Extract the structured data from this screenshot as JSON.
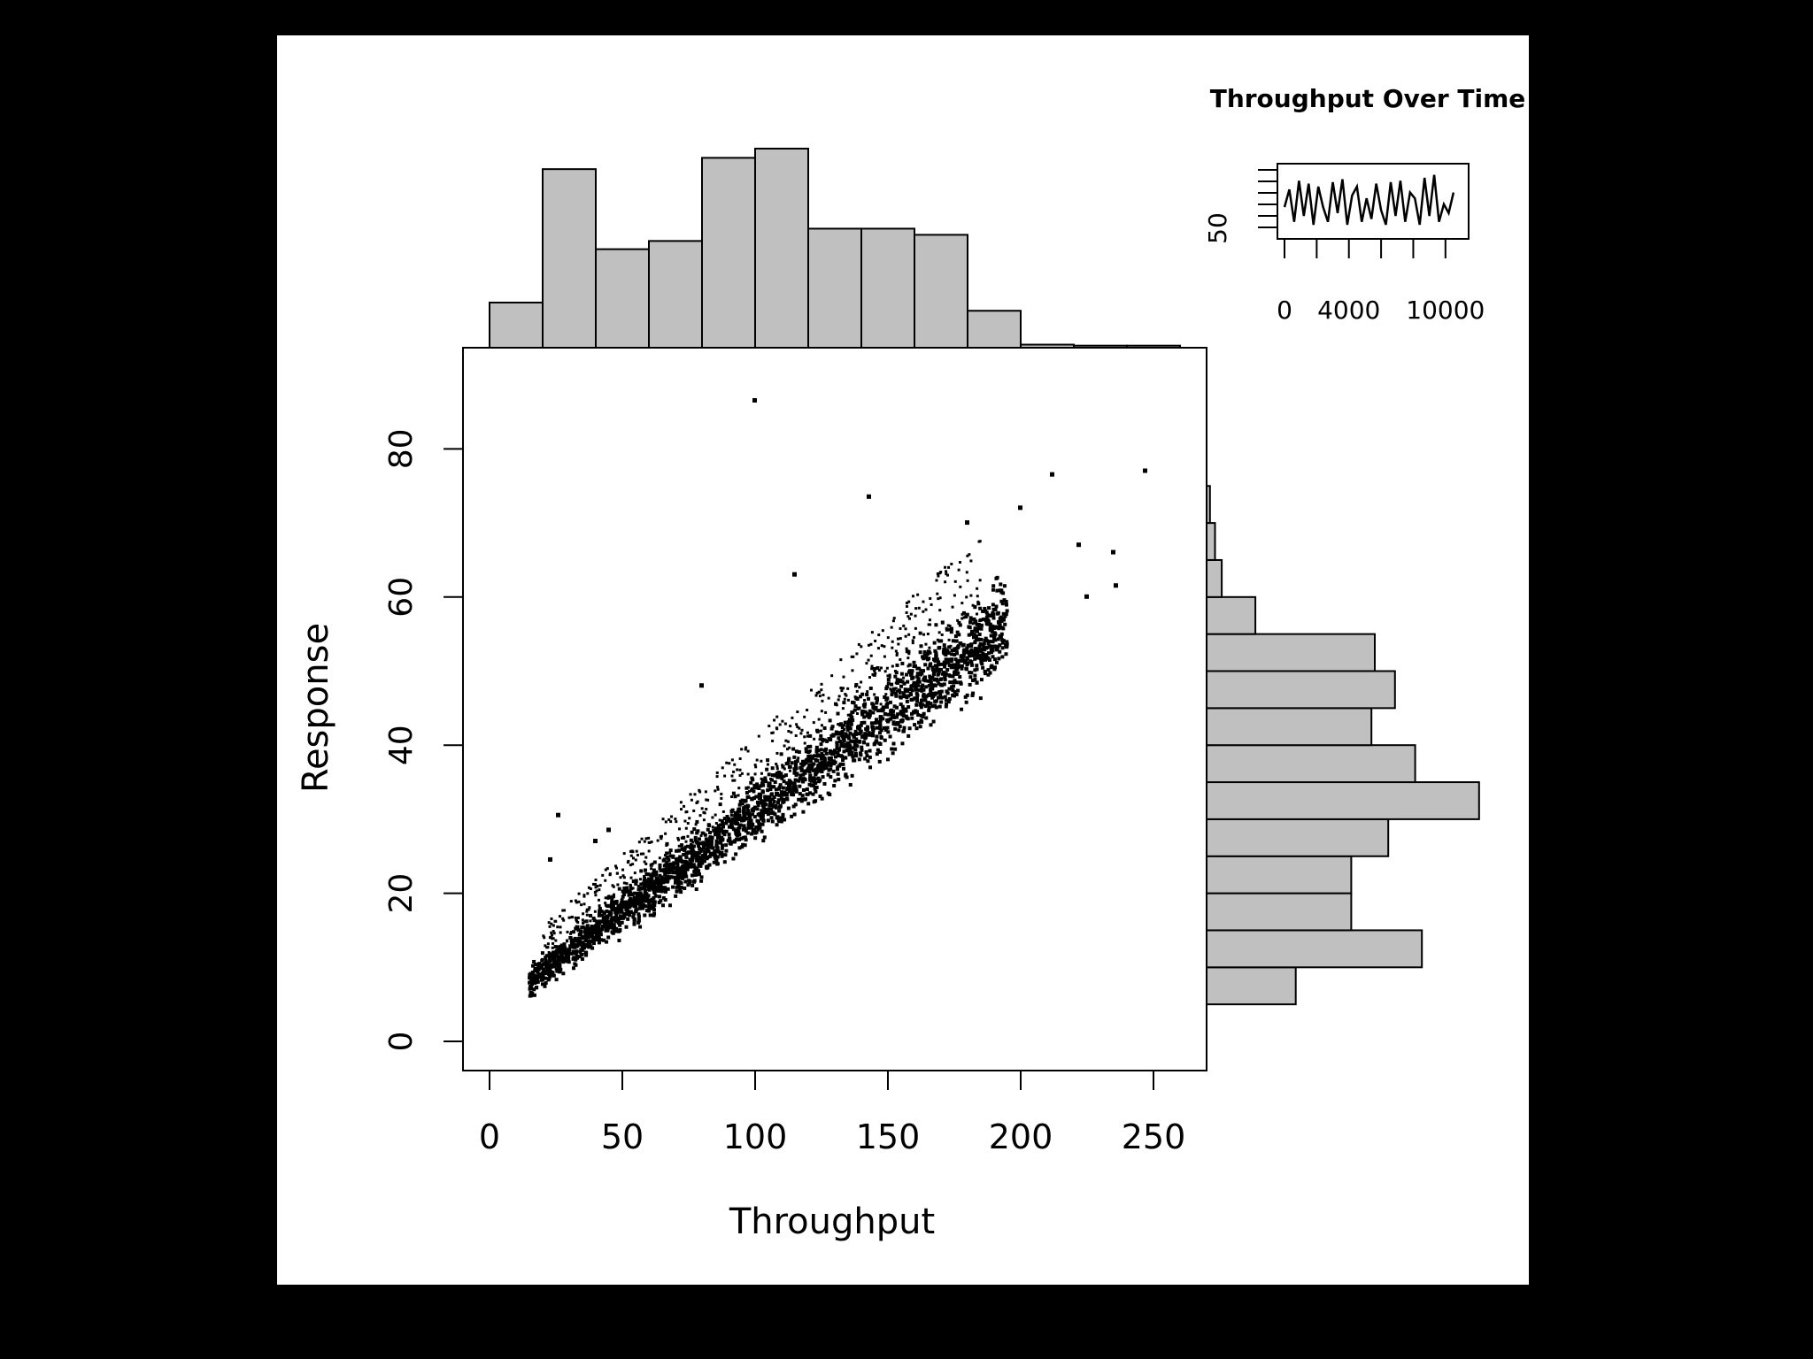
{
  "background": "#000000",
  "panel_color": "#ffffff",
  "bar_fill": "#c0c0c0",
  "chart_data": [
    {
      "type": "scatter",
      "xlabel": "Throughput",
      "ylabel": "Response",
      "xlim": [
        -10,
        270
      ],
      "ylim": [
        -4,
        93
      ],
      "xticks": [
        0,
        50,
        100,
        150,
        200,
        250
      ],
      "yticks": [
        0,
        20,
        40,
        60,
        80
      ],
      "trend": {
        "x_range": [
          15,
          195
        ],
        "slope": 0.27,
        "intercept": 4
      },
      "upper_band": {
        "x_range": [
          20,
          185
        ],
        "offset": 9
      },
      "outliers": [
        {
          "x": 100,
          "y": 86.5
        },
        {
          "x": 143,
          "y": 73.5
        },
        {
          "x": 212,
          "y": 76.5
        },
        {
          "x": 247,
          "y": 77
        },
        {
          "x": 222,
          "y": 67
        },
        {
          "x": 235,
          "y": 66
        },
        {
          "x": 236,
          "y": 61.5
        },
        {
          "x": 225,
          "y": 60
        },
        {
          "x": 115,
          "y": 63
        },
        {
          "x": 80,
          "y": 48
        },
        {
          "x": 26,
          "y": 30.5
        },
        {
          "x": 23,
          "y": 24.5
        },
        {
          "x": 40,
          "y": 27
        },
        {
          "x": 45,
          "y": 28.5
        },
        {
          "x": 200,
          "y": 72
        },
        {
          "x": 180,
          "y": 70
        }
      ]
    },
    {
      "type": "bar",
      "orientation": "vertical",
      "bin_edges": [
        0,
        20,
        40,
        60,
        80,
        100,
        120,
        140,
        160,
        180,
        200,
        220,
        240,
        260
      ],
      "values": [
        220,
        870,
        480,
        520,
        925,
        970,
        580,
        580,
        550,
        180,
        15,
        10,
        10
      ]
    },
    {
      "type": "bar",
      "orientation": "horizontal",
      "bin_edges": [
        5,
        10,
        15,
        20,
        25,
        30,
        35,
        40,
        45,
        50,
        55,
        60,
        65,
        70,
        75
      ],
      "values": [
        265,
        640,
        430,
        430,
        540,
        810,
        620,
        490,
        560,
        500,
        145,
        45,
        25,
        10
      ]
    },
    {
      "type": "line",
      "title": "Throughput Over Time",
      "xticks": [
        0,
        4000,
        10000
      ],
      "yticks": [
        50
      ],
      "xlim": [
        0,
        11000
      ],
      "ylim": [
        0,
        220
      ],
      "x": [
        0,
        300,
        600,
        900,
        1200,
        1500,
        1800,
        2100,
        2400,
        2700,
        3000,
        3300,
        3600,
        3900,
        4200,
        4500,
        4800,
        5100,
        5400,
        5700,
        6000,
        6300,
        6600,
        6900,
        7200,
        7500,
        7800,
        8100,
        8400,
        8700,
        9000,
        9300,
        9600,
        9900,
        10200,
        10500
      ],
      "y": [
        90,
        150,
        40,
        180,
        60,
        170,
        30,
        160,
        90,
        40,
        175,
        70,
        185,
        30,
        130,
        160,
        40,
        120,
        50,
        170,
        80,
        30,
        175,
        60,
        180,
        40,
        140,
        120,
        30,
        190,
        60,
        200,
        40,
        100,
        70,
        140
      ]
    }
  ]
}
